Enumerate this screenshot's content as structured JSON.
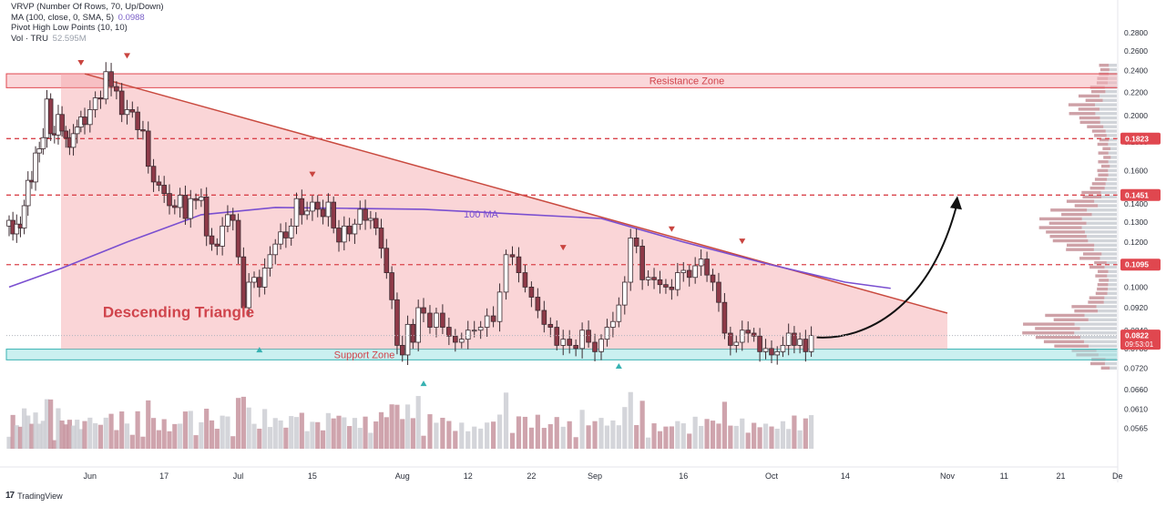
{
  "indicators": {
    "vrvp": "VRVP (Number Of Rows, 70, Up/Down)",
    "ma": "MA (100, close, 0, SMA, 5)",
    "ma_value": "0.0988",
    "pivot": "Pivot High Low Points (10, 10)",
    "vol": "Vol · TRU",
    "vol_value": "52.595M"
  },
  "footer": {
    "logo": "17",
    "brand": "TradingView"
  },
  "chart_data": {
    "type": "candlestick",
    "price_axis": {
      "range": [
        0.052,
        0.286
      ],
      "scale": "log",
      "ticks": [
        "0.2800",
        "0.2600",
        "0.2400",
        "0.2200",
        "0.2000",
        "0.1800",
        "0.1600",
        "0.1400",
        "0.1300",
        "0.1200",
        "0.1100",
        "0.1000",
        "0.0920",
        "0.0840",
        "0.0780",
        "0.0720",
        "0.0660",
        "0.0610",
        "0.0565"
      ]
    },
    "price_badges": [
      {
        "label": "0.1823",
        "value": 0.1823,
        "color": "#e0474f"
      },
      {
        "label": "0.1451",
        "value": 0.1451,
        "color": "#e0474f"
      },
      {
        "label": "0.1095",
        "value": 0.1095,
        "color": "#e0474f"
      },
      {
        "label": "0.0822",
        "value": 0.0822,
        "sub": "09:53:01",
        "color": "#e0474f"
      }
    ],
    "time_axis": [
      "Jun",
      "17",
      "Jul",
      "15",
      "Aug",
      "12",
      "22",
      "Sep",
      "16",
      "Oct",
      "14",
      "Nov",
      "11",
      "21",
      "De"
    ],
    "annotations": {
      "resistance_label": "Resistance Zone",
      "support_label": "Support Zone",
      "pattern_label": "Descending Triangle",
      "ma_label": "100 MA"
    },
    "resistance_zone": [
      0.224,
      0.237
    ],
    "support_zone": [
      0.0745,
      0.0778
    ],
    "triangle": {
      "top_start": {
        "date": "2024-06-02",
        "price": 0.237
      },
      "top_end": {
        "date": "2024-11-01",
        "price": 0.09
      }
    },
    "dashed_levels": [
      0.1823,
      0.1451,
      0.1095
    ],
    "last_price": 0.0822,
    "candles": {
      "start": "2024-05-13",
      "open": [
        0.128,
        0.131,
        0.124,
        0.129,
        0.127,
        0.139,
        0.154,
        0.153,
        0.172,
        0.175,
        0.183,
        0.214,
        0.186,
        0.185,
        0.201,
        0.188,
        0.183,
        0.176,
        0.186,
        0.191,
        0.199,
        0.193,
        0.205,
        0.215,
        0.214,
        0.239,
        0.225,
        0.221,
        0.201,
        0.205,
        0.203,
        0.189,
        0.188,
        0.163,
        0.153,
        0.151,
        0.146,
        0.139,
        0.138,
        0.145,
        0.132,
        0.143,
        0.142,
        0.144,
        0.123,
        0.119,
        0.118,
        0.128,
        0.134,
        0.131,
        0.113,
        0.092,
        0.102,
        0.104,
        0.1,
        0.108,
        0.114,
        0.119,
        0.125,
        0.122,
        0.128,
        0.143,
        0.134,
        0.136,
        0.141,
        0.137,
        0.133,
        0.141,
        0.127,
        0.12,
        0.128,
        0.124,
        0.129,
        0.137,
        0.131,
        0.132,
        0.127,
        0.117,
        0.106,
        0.095,
        0.079,
        0.076,
        0.086,
        0.08,
        0.092,
        0.09,
        0.085,
        0.09,
        0.085,
        0.082,
        0.08,
        0.081,
        0.084,
        0.084,
        0.085,
        0.089,
        0.087,
        0.098,
        0.114,
        0.113,
        0.106,
        0.1,
        0.096,
        0.091,
        0.086,
        0.085,
        0.079,
        0.081,
        0.079,
        0.078,
        0.084,
        0.08,
        0.077,
        0.081,
        0.085,
        0.087,
        0.093,
        0.102,
        0.122,
        0.118,
        0.103,
        0.104,
        0.103,
        0.101,
        0.1,
        0.099,
        0.106,
        0.107,
        0.104,
        0.109,
        0.112,
        0.105,
        0.102,
        0.094,
        0.083,
        0.079,
        0.08,
        0.084,
        0.083,
        0.082,
        0.077,
        0.078,
        0.076,
        0.077,
        0.079,
        0.083,
        0.079,
        0.081,
        0.077
      ],
      "close": [
        0.131,
        0.124,
        0.129,
        0.127,
        0.139,
        0.154,
        0.153,
        0.172,
        0.175,
        0.183,
        0.214,
        0.186,
        0.185,
        0.201,
        0.188,
        0.183,
        0.176,
        0.186,
        0.191,
        0.199,
        0.193,
        0.205,
        0.215,
        0.214,
        0.239,
        0.225,
        0.221,
        0.201,
        0.205,
        0.203,
        0.189,
        0.188,
        0.163,
        0.153,
        0.151,
        0.146,
        0.139,
        0.138,
        0.145,
        0.132,
        0.143,
        0.142,
        0.144,
        0.123,
        0.119,
        0.118,
        0.128,
        0.134,
        0.131,
        0.113,
        0.092,
        0.102,
        0.104,
        0.1,
        0.108,
        0.114,
        0.119,
        0.125,
        0.122,
        0.128,
        0.143,
        0.134,
        0.136,
        0.141,
        0.137,
        0.133,
        0.141,
        0.127,
        0.12,
        0.128,
        0.124,
        0.129,
        0.137,
        0.131,
        0.132,
        0.127,
        0.117,
        0.106,
        0.095,
        0.079,
        0.076,
        0.086,
        0.08,
        0.092,
        0.09,
        0.085,
        0.09,
        0.085,
        0.082,
        0.08,
        0.081,
        0.084,
        0.084,
        0.085,
        0.089,
        0.087,
        0.098,
        0.114,
        0.113,
        0.106,
        0.1,
        0.096,
        0.091,
        0.086,
        0.085,
        0.079,
        0.081,
        0.079,
        0.078,
        0.084,
        0.08,
        0.077,
        0.081,
        0.085,
        0.087,
        0.093,
        0.102,
        0.122,
        0.118,
        0.103,
        0.104,
        0.103,
        0.101,
        0.1,
        0.099,
        0.106,
        0.107,
        0.104,
        0.109,
        0.112,
        0.105,
        0.102,
        0.094,
        0.083,
        0.079,
        0.08,
        0.084,
        0.083,
        0.082,
        0.077,
        0.078,
        0.076,
        0.077,
        0.079,
        0.083,
        0.079,
        0.081,
        0.077,
        0.0822
      ]
    },
    "ma100": [
      {
        "date": "2024-05-13",
        "value": 0.1
      },
      {
        "date": "2024-05-27",
        "value": 0.108
      },
      {
        "date": "2024-06-10",
        "value": 0.12
      },
      {
        "date": "2024-06-24",
        "value": 0.134
      },
      {
        "date": "2024-07-08",
        "value": 0.138
      },
      {
        "date": "2024-07-22",
        "value": 0.1375
      },
      {
        "date": "2024-08-05",
        "value": 0.137
      },
      {
        "date": "2024-08-19",
        "value": 0.1345
      },
      {
        "date": "2024-09-02",
        "value": 0.132
      },
      {
        "date": "2024-09-16",
        "value": 0.12
      },
      {
        "date": "2024-09-30",
        "value": 0.11
      },
      {
        "date": "2024-10-14",
        "value": 0.102
      },
      {
        "date": "2024-10-22",
        "value": 0.0995
      }
    ]
  }
}
